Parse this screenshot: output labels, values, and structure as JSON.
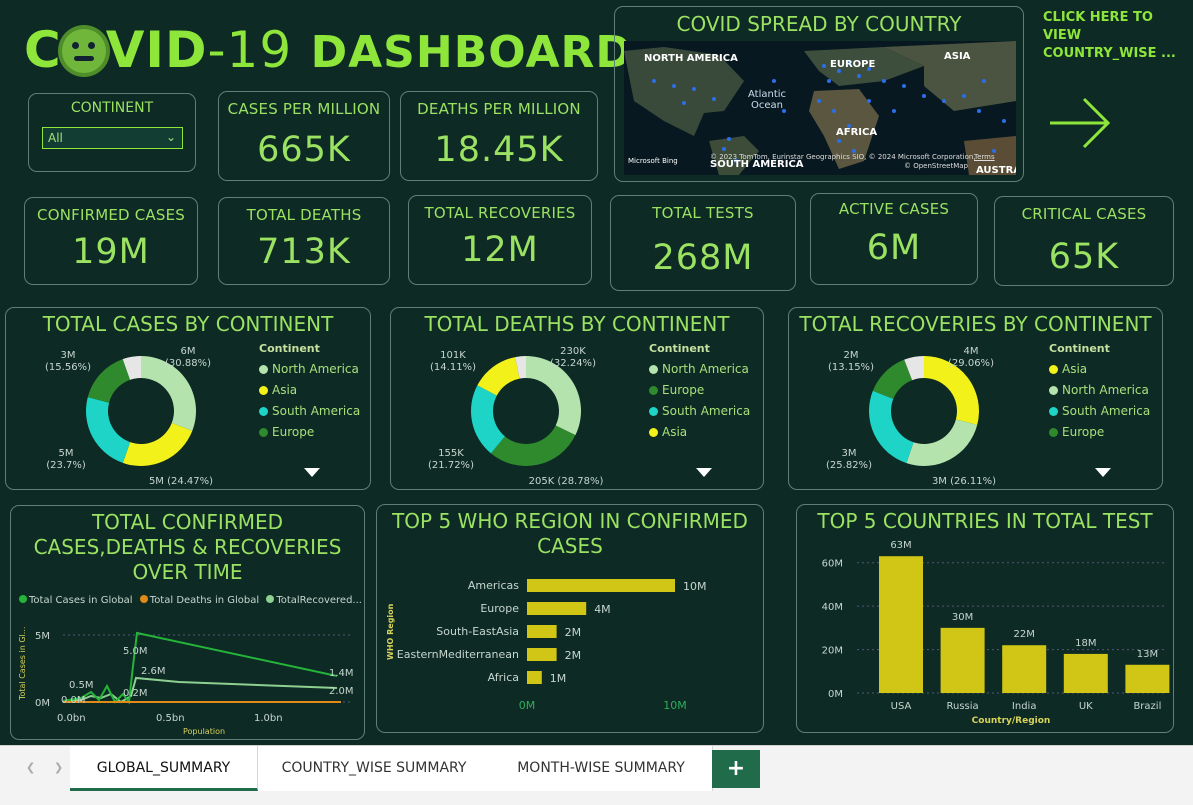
{
  "header": {
    "title_prefix": "C",
    "title_suffix": "VID",
    "title_num": "-19",
    "title_rest": "DASHBOARD"
  },
  "filter": {
    "label": "CONTINENT",
    "value": "All"
  },
  "kpis_top": [
    {
      "label": "CASES PER MILLION",
      "value": "665K"
    },
    {
      "label": "DEATHS PER MILLION",
      "value": "18.45K"
    }
  ],
  "kpis_row": [
    {
      "label": "CONFIRMED CASES",
      "value": "19M"
    },
    {
      "label": "TOTAL DEATHS",
      "value": "713K"
    },
    {
      "label": "TOTAL RECOVERIES",
      "value": "12M"
    },
    {
      "label": "TOTAL TESTS",
      "value": "268M"
    },
    {
      "label": "ACTIVE CASES",
      "value": "6M"
    },
    {
      "label": "CRITICAL CASES",
      "value": "65K"
    }
  ],
  "map": {
    "title": "COVID SPREAD BY COUNTRY",
    "labels": {
      "north_america": "NORTH AMERICA",
      "europe": "EUROPE",
      "asia": "ASIA",
      "atlantic": "Atlantic\nOcean",
      "africa": "AFRICA",
      "south_america": "SOUTH AMERICA",
      "australia": "AUSTRA"
    },
    "credit": "© 2023 TomTom, Eurinstar Geographics SIO, © 2024 Microsoft Corporation,",
    "terms": "Terms",
    "osm": "© OpenStreetMap",
    "bing": "Microsoft Bing"
  },
  "link": {
    "text": "CLICK HERE TO VIEW COUNTRY_WISE ...",
    "arrow_color": "#8ee63b"
  },
  "donuts": [
    {
      "title": "TOTAL CASES BY CONTINENT",
      "legend_title": "Continent",
      "legend": [
        {
          "name": "North America",
          "color": "#b4e3ae"
        },
        {
          "name": "Asia",
          "color": "#f2f21a"
        },
        {
          "name": "South America",
          "color": "#1dd4c7"
        },
        {
          "name": "Europe",
          "color": "#2f8a2d"
        }
      ],
      "slices": [
        {
          "name": "North America",
          "value": 30.88,
          "color": "#b4e3ae"
        },
        {
          "name": "Asia",
          "value": 24.47,
          "color": "#f2f21a"
        },
        {
          "name": "South America",
          "value": 23.7,
          "color": "#1dd4c7"
        },
        {
          "name": "Europe",
          "value": 15.56,
          "color": "#2f8a2d"
        },
        {
          "name": "Other",
          "value": 5.39,
          "color": "#e6e6e6"
        }
      ],
      "labels": [
        "6M\n(30.88%)",
        "5M (24.47%)",
        "5M\n(23.7%)",
        "3M\n(15.56%)"
      ]
    },
    {
      "title": "TOTAL DEATHS BY CONTINENT",
      "legend_title": "Continent",
      "legend": [
        {
          "name": "North America",
          "color": "#b4e3ae"
        },
        {
          "name": "Europe",
          "color": "#2f8a2d"
        },
        {
          "name": "South America",
          "color": "#1dd4c7"
        },
        {
          "name": "Asia",
          "color": "#f2f21a"
        }
      ],
      "slices": [
        {
          "name": "North America",
          "value": 32.24,
          "color": "#b4e3ae"
        },
        {
          "name": "Europe",
          "value": 28.78,
          "color": "#2f8a2d"
        },
        {
          "name": "South America",
          "value": 21.72,
          "color": "#1dd4c7"
        },
        {
          "name": "Asia",
          "value": 14.11,
          "color": "#f2f21a"
        },
        {
          "name": "Other",
          "value": 3.15,
          "color": "#e6e6e6"
        }
      ],
      "labels": [
        "230K\n(32.24%)",
        "205K (28.78%)",
        "155K\n(21.72%)",
        "101K\n(14.11%)"
      ]
    },
    {
      "title": "TOTAL RECOVERIES BY CONTINENT",
      "legend_title": "Continent",
      "legend": [
        {
          "name": "Asia",
          "color": "#f2f21a"
        },
        {
          "name": "North America",
          "color": "#b4e3ae"
        },
        {
          "name": "South America",
          "color": "#1dd4c7"
        },
        {
          "name": "Europe",
          "color": "#2f8a2d"
        }
      ],
      "slices": [
        {
          "name": "Asia",
          "value": 29.06,
          "color": "#f2f21a"
        },
        {
          "name": "North America",
          "value": 26.11,
          "color": "#b4e3ae"
        },
        {
          "name": "South America",
          "value": 25.82,
          "color": "#1dd4c7"
        },
        {
          "name": "Europe",
          "value": 13.15,
          "color": "#2f8a2d"
        },
        {
          "name": "Other",
          "value": 5.86,
          "color": "#e6e6e6"
        }
      ],
      "labels": [
        "4M\n(29.06%)",
        "3M (26.11%)",
        "3M\n(25.82%)",
        "2M\n(13.15%)"
      ]
    }
  ],
  "line_chart": {
    "title": "TOTAL CONFIRMED CASES,DEATHS & RECOVERIES OVER TIME",
    "legend": [
      {
        "name": "Total Cases in Global",
        "color": "#25b43a"
      },
      {
        "name": "Total Deaths in Global",
        "color": "#e08a17"
      },
      {
        "name": "TotalRecovered...",
        "color": "#8ed08f"
      }
    ],
    "ylabel": "Total Cases in Gl...",
    "xlabel": "Population",
    "yticks": [
      "5M",
      "0M"
    ],
    "xticks": [
      "0.0bn",
      "0.5bn",
      "1.0bn"
    ],
    "annotations": [
      "5.0M",
      "2.6M",
      "0.5M",
      "0.0M",
      "0.2M",
      "1.4M",
      "2.0M"
    ]
  },
  "chart_data": [
    {
      "type": "bar",
      "title": "TOP 5 WHO REGION IN CONFIRMED CASES",
      "ylabel": "WHO Region",
      "categories": [
        "Americas",
        "Europe",
        "South-EastAsia",
        "EasternMediterranean",
        "Africa"
      ],
      "values": [
        10,
        4,
        2,
        2,
        1
      ],
      "value_labels": [
        "10M",
        "4M",
        "2M",
        "2M",
        "1M"
      ],
      "xticks": [
        "0M",
        "10M"
      ],
      "xlim": [
        0,
        10
      ],
      "color": "#d1c616"
    },
    {
      "type": "bar",
      "title": "TOP 5 COUNTRIES IN TOTAL TEST",
      "xlabel": "Country/Region",
      "categories": [
        "USA",
        "Russia",
        "India",
        "UK",
        "Brazil"
      ],
      "values": [
        63,
        30,
        22,
        18,
        13
      ],
      "value_labels": [
        "63M",
        "30M",
        "22M",
        "18M",
        "13M"
      ],
      "yticks": [
        "0M",
        "20M",
        "40M",
        "60M"
      ],
      "ylim": [
        0,
        70
      ],
      "color": "#d1c616"
    }
  ],
  "tabs": [
    {
      "label": "GLOBAL_SUMMARY"
    },
    {
      "label": "COUNTRY_WISE SUMMARY"
    },
    {
      "label": "MONTH-WISE SUMMARY"
    },
    {
      "label": "+"
    }
  ]
}
